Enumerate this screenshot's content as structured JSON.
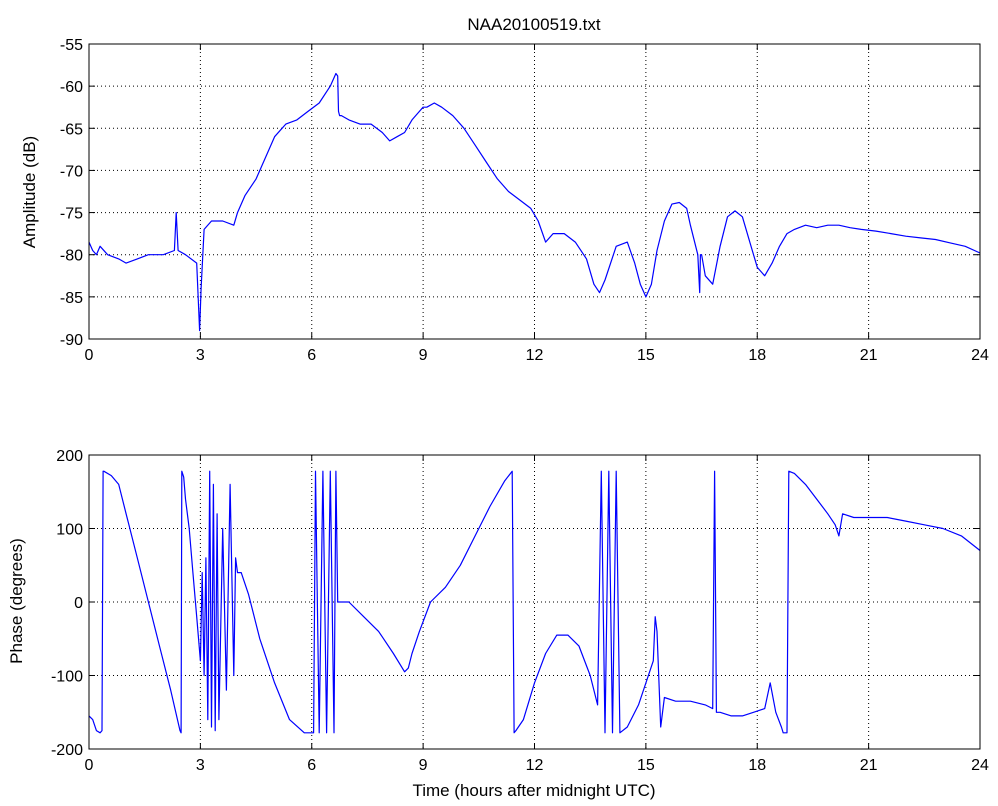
{
  "chart_data": [
    {
      "type": "line",
      "title": "NAA20100519.txt",
      "xlabel": "",
      "ylabel": "Amplitude (dB)",
      "xlim": [
        0,
        24
      ],
      "ylim": [
        -90,
        -55
      ],
      "xticks": [
        0,
        3,
        6,
        9,
        12,
        15,
        18,
        21,
        24
      ],
      "yticks": [
        -90,
        -85,
        -80,
        -75,
        -70,
        -65,
        -60,
        -55
      ],
      "grid": true,
      "color": "#0000ff",
      "series": [
        {
          "x": [
            0,
            0.1,
            0.2,
            0.3,
            0.5,
            0.8,
            1.0,
            1.3,
            1.6,
            2.0,
            2.3,
            2.35,
            2.4,
            2.6,
            2.9,
            2.98,
            3.02,
            3.1,
            3.3,
            3.6,
            3.9,
            4.0,
            4.2,
            4.5,
            4.8,
            5.0,
            5.3,
            5.6,
            5.9,
            6.2,
            6.5,
            6.65,
            6.7,
            6.72,
            6.75,
            6.8,
            7.0,
            7.3,
            7.6,
            7.9,
            8.1,
            8.3,
            8.5,
            8.7,
            8.9,
            9.0,
            9.1,
            9.3,
            9.5,
            9.8,
            10.1,
            10.4,
            10.7,
            11.0,
            11.3,
            11.6,
            11.9,
            12.1,
            12.3,
            12.5,
            12.8,
            13.1,
            13.4,
            13.6,
            13.75,
            13.9,
            14.2,
            14.5,
            14.7,
            14.85,
            15.0,
            15.15,
            15.3,
            15.5,
            15.7,
            15.9,
            16.1,
            16.2,
            16.4,
            16.45,
            16.47,
            16.5,
            16.6,
            16.8,
            17.0,
            17.2,
            17.4,
            17.6,
            17.8,
            18.0,
            18.2,
            18.4,
            18.6,
            18.8,
            19.0,
            19.3,
            19.6,
            19.9,
            20.2,
            20.5,
            20.8,
            21.2,
            21.6,
            22.0,
            22.4,
            22.8,
            23.2,
            23.6,
            24.0
          ],
          "values": [
            -78.5,
            -79.5,
            -80,
            -79,
            -80,
            -80.5,
            -81,
            -80.5,
            -80,
            -80,
            -79.5,
            -75,
            -79.5,
            -80,
            -81,
            -89,
            -84,
            -77,
            -76,
            -76,
            -76.5,
            -75,
            -73,
            -71,
            -68,
            -66,
            -64.5,
            -64,
            -63,
            -62,
            -60,
            -58.5,
            -58.8,
            -63,
            -63.5,
            -63.5,
            -64,
            -64.5,
            -64.5,
            -65.5,
            -66.5,
            -66,
            -65.5,
            -64,
            -63,
            -62.5,
            -62.5,
            -62,
            -62.5,
            -63.5,
            -65,
            -67,
            -69,
            -71,
            -72.5,
            -73.5,
            -74.5,
            -76,
            -78.5,
            -77.5,
            -77.5,
            -78.5,
            -80.5,
            -83.5,
            -84.5,
            -83,
            -79,
            -78.5,
            -81,
            -83.5,
            -85,
            -83.5,
            -79.5,
            -76,
            -74,
            -73.8,
            -74.5,
            -76.5,
            -80,
            -84.5,
            -80,
            -80,
            -82.5,
            -83.5,
            -79,
            -75.5,
            -74.8,
            -75.5,
            -78.5,
            -81.5,
            -82.5,
            -81,
            -79,
            -77.5,
            -77,
            -76.5,
            -76.8,
            -76.5,
            -76.5,
            -76.8,
            -77,
            -77.2,
            -77.5,
            -77.8,
            -78,
            -78.2,
            -78.6,
            -79,
            -79.8
          ]
        }
      ]
    },
    {
      "type": "line",
      "title": "",
      "xlabel": "Time (hours after midnight UTC)",
      "ylabel": "Phase (degrees)",
      "xlim": [
        0,
        24
      ],
      "ylim": [
        -200,
        200
      ],
      "xticks": [
        0,
        3,
        6,
        9,
        12,
        15,
        18,
        21,
        24
      ],
      "yticks": [
        -200,
        -100,
        0,
        100,
        200
      ],
      "grid": true,
      "color": "#0000ff",
      "series": [
        {
          "x": [
            0,
            0.1,
            0.2,
            0.3,
            0.35,
            0.38,
            0.4,
            0.6,
            0.8,
            1.0,
            1.3,
            1.6,
            1.9,
            2.2,
            2.45,
            2.48,
            2.5,
            2.55,
            2.6,
            2.7,
            2.8,
            2.9,
            3.0,
            3.05,
            3.1,
            3.15,
            3.2,
            3.25,
            3.3,
            3.35,
            3.4,
            3.45,
            3.5,
            3.6,
            3.7,
            3.8,
            3.9,
            3.95,
            4.0,
            4.1,
            4.3,
            4.6,
            5.0,
            5.4,
            5.8,
            6.05,
            6.1,
            6.2,
            6.3,
            6.4,
            6.5,
            6.6,
            6.65,
            6.7,
            7.0,
            7.4,
            7.8,
            8.2,
            8.5,
            8.6,
            8.7,
            8.9,
            9.2,
            9.6,
            10.0,
            10.4,
            10.8,
            11.2,
            11.4,
            11.45,
            11.5,
            11.7,
            12.0,
            12.3,
            12.6,
            12.9,
            13.2,
            13.5,
            13.7,
            13.8,
            13.9,
            14.0,
            14.1,
            14.2,
            14.3,
            14.5,
            14.8,
            15.0,
            15.2,
            15.25,
            15.3,
            15.4,
            15.5,
            15.8,
            16.2,
            16.6,
            16.8,
            16.85,
            16.9,
            17.0,
            17.3,
            17.6,
            17.9,
            18.2,
            18.35,
            18.5,
            18.65,
            18.7,
            18.8,
            18.85,
            19.0,
            19.3,
            19.6,
            19.9,
            20.1,
            20.2,
            20.3,
            20.6,
            21.0,
            21.5,
            22.0,
            22.5,
            23.0,
            23.5,
            24.0
          ],
          "values": [
            -155,
            -160,
            -175,
            -178,
            -175,
            178,
            178,
            172,
            160,
            120,
            60,
            0,
            -60,
            -120,
            -175,
            -178,
            178,
            170,
            140,
            100,
            40,
            -20,
            -80,
            40,
            -100,
            60,
            -160,
            178,
            -170,
            160,
            -175,
            120,
            -160,
            100,
            -120,
            160,
            -100,
            60,
            40,
            40,
            10,
            -50,
            -110,
            -160,
            -178,
            -178,
            178,
            -178,
            178,
            -178,
            178,
            -178,
            178,
            0,
            0,
            -20,
            -40,
            -70,
            -95,
            -90,
            -70,
            -40,
            0,
            20,
            50,
            90,
            130,
            165,
            178,
            -178,
            -175,
            -160,
            -110,
            -70,
            -45,
            -45,
            -60,
            -100,
            -140,
            178,
            -178,
            178,
            -178,
            178,
            -178,
            -170,
            -140,
            -110,
            -80,
            -20,
            -40,
            -170,
            -130,
            -135,
            -135,
            -140,
            -145,
            178,
            -150,
            -150,
            -155,
            -155,
            -150,
            -145,
            -110,
            -150,
            -170,
            -178,
            -178,
            178,
            175,
            160,
            140,
            120,
            105,
            90,
            120,
            115,
            115,
            115,
            110,
            105,
            100,
            90,
            70
          ]
        }
      ]
    }
  ]
}
